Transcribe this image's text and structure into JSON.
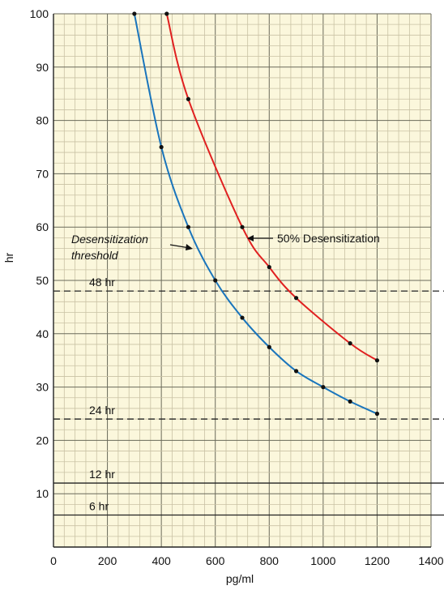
{
  "chart_data": {
    "type": "line",
    "xlabel": "pg/ml",
    "ylabel": "hr",
    "xlim": [
      0,
      1400
    ],
    "ylim": [
      0,
      100
    ],
    "x_ticks": [
      "0",
      "200",
      "400",
      "600",
      "800",
      "1000",
      "1200",
      "1400"
    ],
    "y_ticks": [
      "10",
      "20",
      "30",
      "40",
      "50",
      "60",
      "70",
      "80",
      "90",
      "100"
    ],
    "grid": true,
    "series": [
      {
        "key": "threshold",
        "color": "#1a75bc",
        "points": [
          [
            300,
            100
          ],
          [
            400,
            75
          ],
          [
            500,
            60
          ],
          [
            600,
            50
          ],
          [
            700,
            43
          ],
          [
            800,
            37.5
          ],
          [
            900,
            33
          ],
          [
            1000,
            30
          ],
          [
            1100,
            27.3
          ],
          [
            1200,
            25
          ]
        ]
      },
      {
        "key": "fifty",
        "color": "#e02020",
        "points": [
          [
            420,
            100
          ],
          [
            500,
            84
          ],
          [
            700,
            60
          ],
          [
            800,
            52.5
          ],
          [
            900,
            46.7
          ],
          [
            1100,
            38.2
          ],
          [
            1200,
            35
          ]
        ]
      }
    ],
    "reference_lines": [
      {
        "y": 48,
        "label": "48 hr",
        "style": "dashed"
      },
      {
        "y": 24,
        "label": "24 hr",
        "style": "dashed"
      },
      {
        "y": 12,
        "label": "12 hr",
        "style": "solid"
      },
      {
        "y": 6,
        "label": "6 hr",
        "style": "solid"
      }
    ],
    "annotations": {
      "threshold": [
        "Desensitization",
        "threshold"
      ],
      "fifty": "50% Desensitization"
    }
  }
}
